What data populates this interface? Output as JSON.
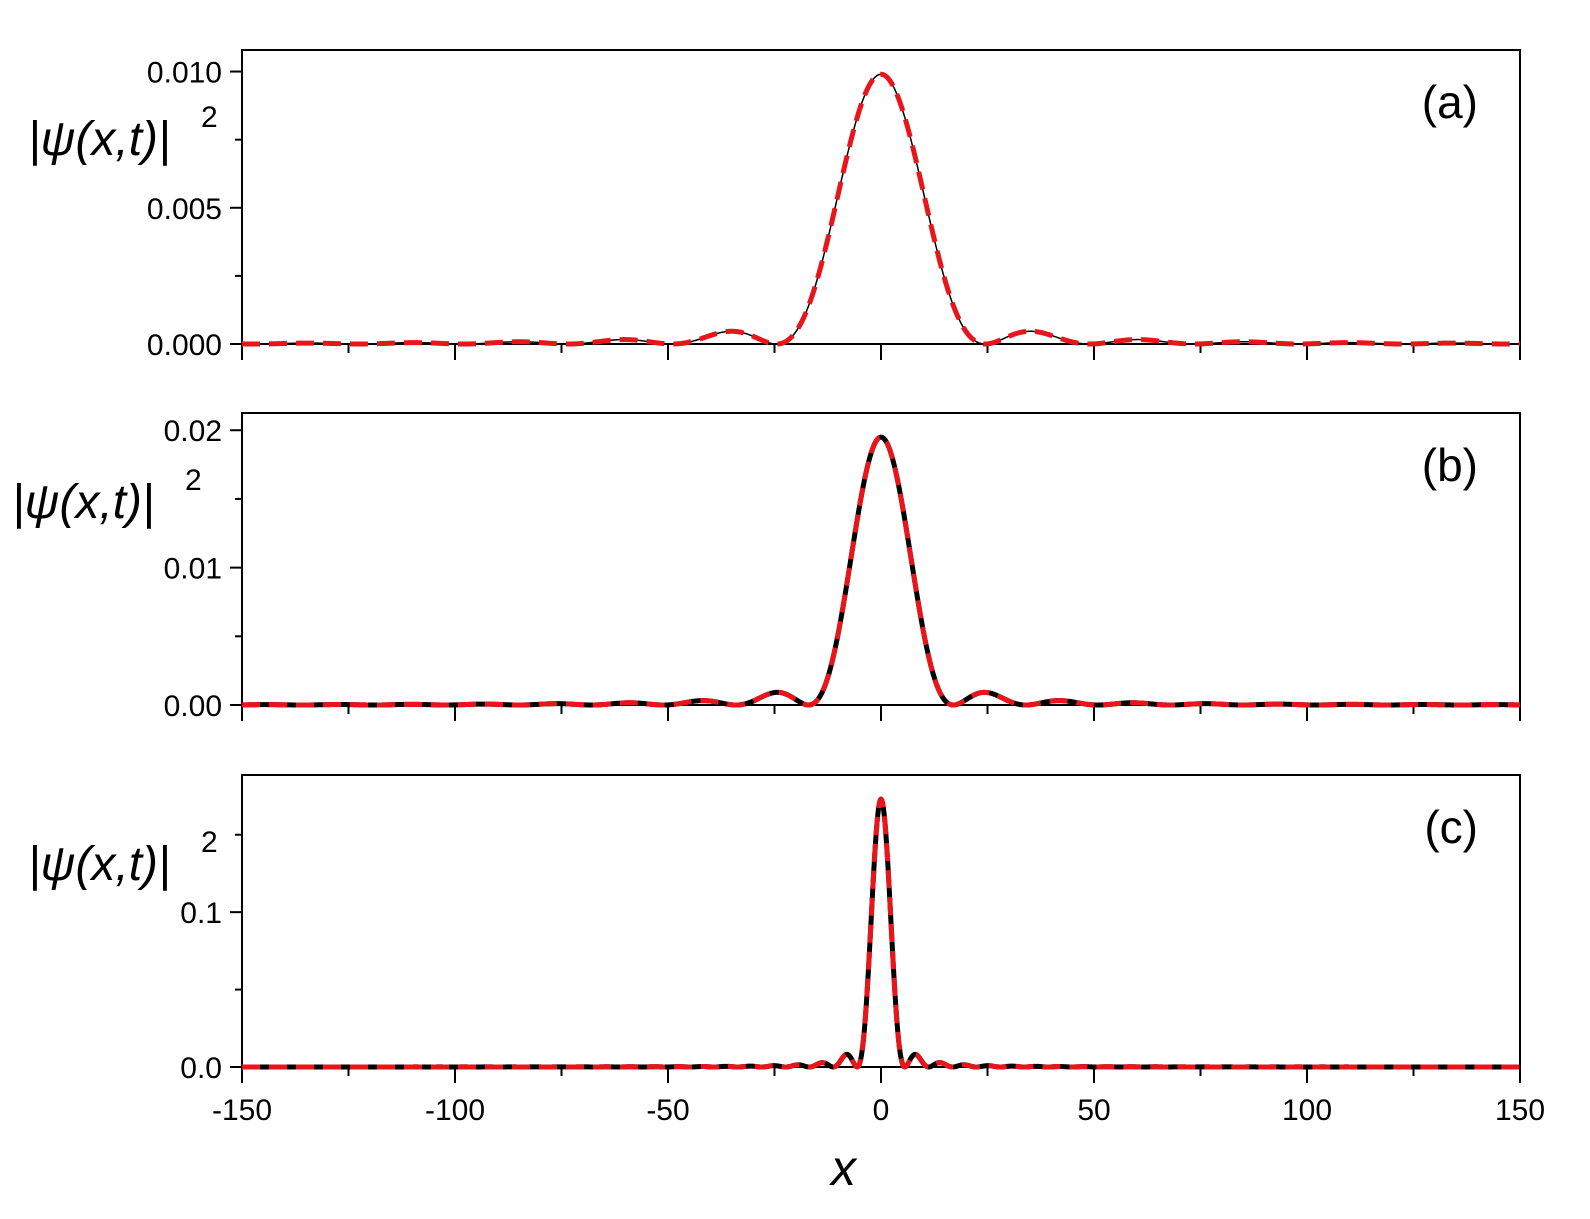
{
  "chart_data": [
    {
      "type": "line",
      "panel_label": "(a)",
      "ylabel": "|ψ(x,t)|²",
      "xlabel": "",
      "xlim": [
        -150,
        150
      ],
      "ylim": [
        0,
        0.0099
      ],
      "yticks": [
        0.0,
        0.005,
        0.01
      ],
      "yticklabels": [
        "0.000",
        "0.005",
        "0.010"
      ],
      "xticks": [
        -150,
        -100,
        -50,
        0,
        50,
        100,
        150
      ],
      "show_xticklabels": false,
      "peak": 0.0099,
      "first_zero": 24.5,
      "series": [
        {
          "style": "solid",
          "color": "#000000",
          "width": 1.5
        },
        {
          "style": "dashed",
          "color": "#e8161b",
          "width": 5
        }
      ]
    },
    {
      "type": "line",
      "panel_label": "(b)",
      "ylabel": "|ψ(x,t)|²",
      "xlabel": "",
      "xlim": [
        -150,
        150
      ],
      "ylim": [
        0,
        0.0195
      ],
      "yticks": [
        0.0,
        0.01,
        0.02
      ],
      "yticklabels": [
        "0.00",
        "0.01",
        "0.02"
      ],
      "xticks": [
        -150,
        -100,
        -50,
        0,
        50,
        100,
        150
      ],
      "show_xticklabels": false,
      "peak": 0.0195,
      "first_zero": 17.0,
      "series": [
        {
          "style": "solid",
          "color": "#000000",
          "width": 5
        },
        {
          "style": "dashed",
          "color": "#e8161b",
          "width": 5
        }
      ]
    },
    {
      "type": "line",
      "panel_label": "(c)",
      "ylabel": "|ψ(x,t)|²",
      "xlabel": "x",
      "xlim": [
        -150,
        150
      ],
      "ylim": [
        0,
        0.173
      ],
      "yticks": [
        0.0,
        0.1
      ],
      "yticklabels": [
        "0.0",
        "0.1"
      ],
      "xticks": [
        -150,
        -100,
        -50,
        0,
        50,
        100,
        150
      ],
      "xticklabels": [
        "-150",
        "-100",
        "-50",
        "0",
        "50",
        "100",
        "150"
      ],
      "show_xticklabels": true,
      "peak": 0.173,
      "first_zero": 5.6,
      "series": [
        {
          "style": "solid",
          "color": "#000000",
          "width": 5
        },
        {
          "style": "dashed",
          "color": "#e8161b",
          "width": 5
        }
      ]
    }
  ]
}
